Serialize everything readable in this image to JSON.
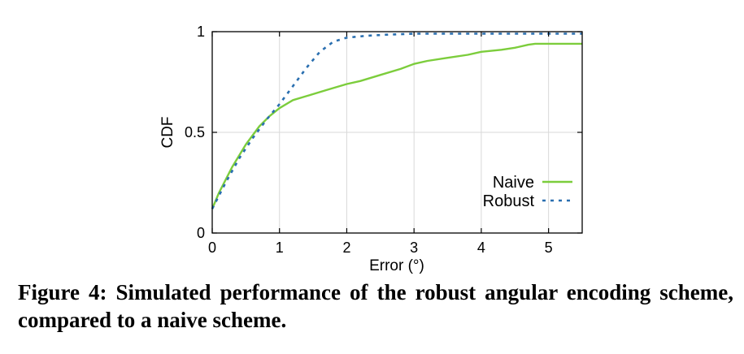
{
  "chart_data": {
    "type": "line",
    "xlabel": "Error (°)",
    "ylabel": "CDF",
    "xlim": [
      0,
      5.5
    ],
    "ylim": [
      0,
      1
    ],
    "x_ticks": [
      {
        "value": 0,
        "label": "0"
      },
      {
        "value": 1,
        "label": "1"
      },
      {
        "value": 2,
        "label": "2"
      },
      {
        "value": 3,
        "label": "3"
      },
      {
        "value": 4,
        "label": "4"
      },
      {
        "value": 5,
        "label": "5"
      }
    ],
    "y_ticks": [
      {
        "value": 0,
        "label": "0"
      },
      {
        "value": 0.5,
        "label": "0.5"
      },
      {
        "value": 1,
        "label": "1"
      }
    ],
    "grid": true,
    "legend_position": "bottom-right",
    "series": [
      {
        "name": "Naive",
        "color": "#7ccd3c",
        "style": "solid",
        "x": [
          0,
          0.1,
          0.3,
          0.5,
          0.7,
          0.85,
          1.0,
          1.2,
          1.4,
          1.7,
          2.0,
          2.2,
          2.5,
          2.8,
          3.0,
          3.2,
          3.5,
          3.8,
          4.0,
          4.3,
          4.5,
          4.7,
          4.8,
          5.0,
          5.5
        ],
        "values": [
          0.12,
          0.2,
          0.33,
          0.44,
          0.53,
          0.58,
          0.62,
          0.66,
          0.68,
          0.71,
          0.74,
          0.755,
          0.785,
          0.815,
          0.84,
          0.855,
          0.87,
          0.885,
          0.9,
          0.91,
          0.92,
          0.935,
          0.94,
          0.94,
          0.94
        ]
      },
      {
        "name": "Robust",
        "color": "#2a6fb0",
        "style": "dashed",
        "x": [
          0,
          0.2,
          0.4,
          0.6,
          0.8,
          1.0,
          1.2,
          1.4,
          1.6,
          1.8,
          2.0,
          2.3,
          2.6,
          3.0,
          3.5,
          4.0,
          5.5
        ],
        "values": [
          0.12,
          0.25,
          0.37,
          0.47,
          0.56,
          0.64,
          0.73,
          0.82,
          0.9,
          0.95,
          0.97,
          0.98,
          0.985,
          0.99,
          0.99,
          0.99,
          0.99
        ]
      }
    ]
  },
  "caption": "Figure 4: Simulated performance of the robust angular encoding scheme, compared to a naive scheme."
}
